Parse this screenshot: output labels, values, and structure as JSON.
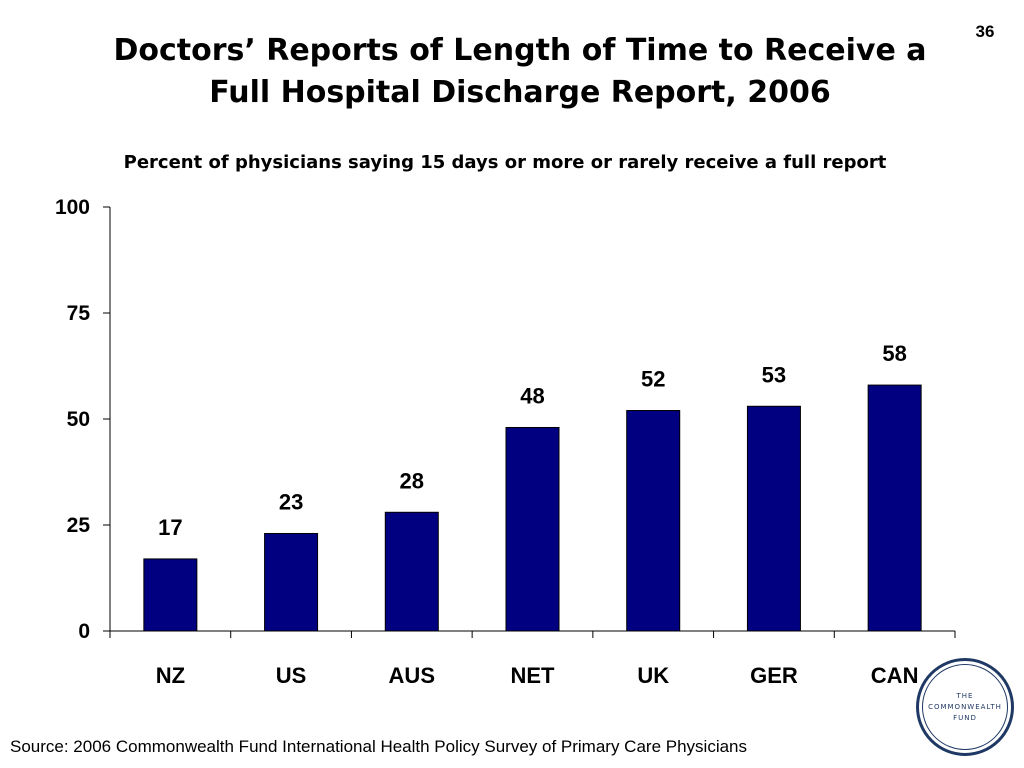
{
  "slide": {
    "number": "36",
    "title_line1": "Doctors’ Reports of Length of Time to Receive a",
    "title_line2": "Full Hospital Discharge Report, 2006",
    "subtitle": "Percent of physicians saying 15 days or more or rarely receive a full report",
    "source": "Source: 2006 Commonwealth Fund International Health Policy Survey of Primary Care Physicians"
  },
  "logo": {
    "line1": "THE",
    "line2": "COMMONWEALTH",
    "line3": "FUND",
    "color": "#1f3864"
  },
  "chart_data": {
    "type": "bar",
    "categories": [
      "NZ",
      "US",
      "AUS",
      "NET",
      "UK",
      "GER",
      "CAN"
    ],
    "values": [
      17,
      23,
      28,
      48,
      52,
      53,
      58
    ],
    "data_labels": [
      "17",
      "23",
      "28",
      "48",
      "52",
      "53",
      "58"
    ],
    "title": "",
    "xlabel": "",
    "ylabel": "",
    "ylim": [
      0,
      100
    ],
    "yticks": [
      0,
      25,
      50,
      75,
      100
    ],
    "ytick_labels": [
      "0",
      "25",
      "50",
      "75",
      "100"
    ],
    "grid": false,
    "legend": "none",
    "bar_color": "#000080"
  }
}
